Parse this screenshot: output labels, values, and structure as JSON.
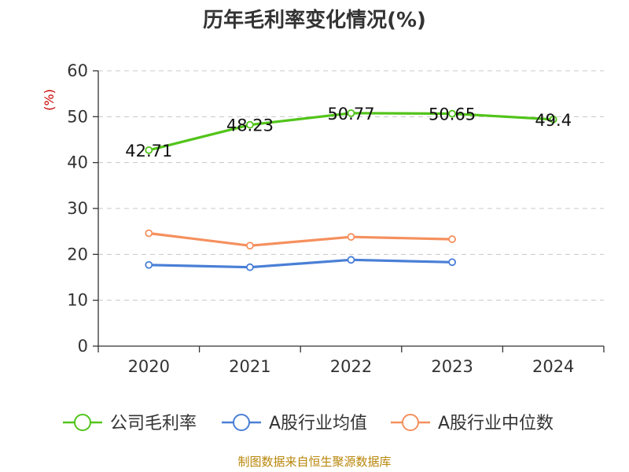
{
  "chart_data": {
    "type": "line",
    "title": "历年毛利率变化情况(%)",
    "ylabel": "(%)",
    "categories": [
      "2020",
      "2021",
      "2022",
      "2023",
      "2024"
    ],
    "ylim": [
      0,
      60
    ],
    "yticks": [
      0,
      10,
      20,
      30,
      40,
      50,
      60
    ],
    "ytick_labels": [
      "0",
      "10",
      "20",
      "30",
      "40",
      "50",
      "60"
    ],
    "grid": true,
    "legend_position": "bottom",
    "series": [
      {
        "name": "公司毛利率",
        "color": "#52c41a",
        "values": [
          42.71,
          48.23,
          50.77,
          50.65,
          49.4
        ],
        "labels": [
          "42.71",
          "48.23",
          "50.77",
          "50.65",
          "49.4"
        ]
      },
      {
        "name": "A股行业均值",
        "color": "#4a7fd6",
        "values": [
          17.7,
          17.2,
          18.8,
          18.3,
          null
        ]
      },
      {
        "name": "A股行业中位数",
        "color": "#f5905e",
        "values": [
          24.6,
          21.9,
          23.8,
          23.3,
          null
        ]
      }
    ]
  },
  "source": "制图数据来自恒生聚源数据库"
}
